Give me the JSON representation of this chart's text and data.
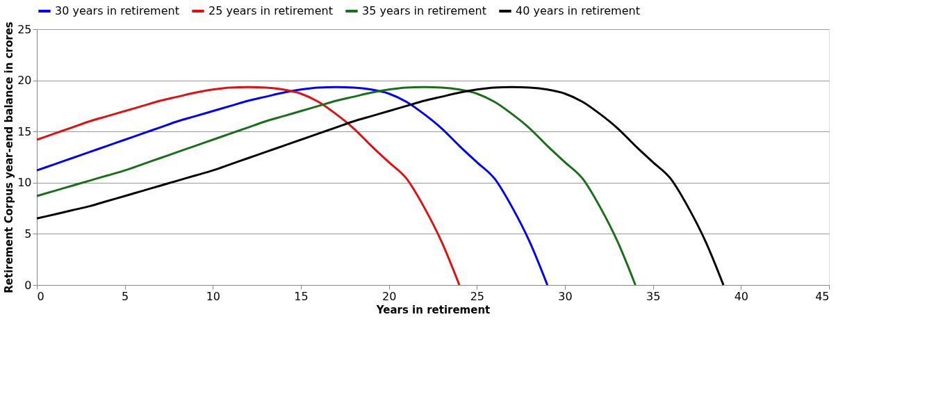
{
  "chart_data": {
    "type": "line",
    "xlabel": "Years in retirement",
    "ylabel": "Retirement Corpus year-end balance in crores",
    "xlim": [
      0,
      45
    ],
    "xticks": [
      0,
      5,
      10,
      15,
      20,
      25,
      30,
      35,
      40,
      45
    ],
    "ylim": [
      0,
      25
    ],
    "yticks": [
      0,
      5,
      10,
      15,
      20,
      25
    ],
    "grid": "y",
    "legend": "top",
    "marker": "none",
    "line_style": "solid",
    "series": [
      {
        "name": "30 years in retirement",
        "color": "#0000ff",
        "x": [
          0,
          1,
          2,
          3,
          4,
          5,
          6,
          7,
          8,
          9,
          10,
          11,
          12,
          13,
          14,
          15,
          16,
          17,
          18,
          19,
          20,
          21,
          22,
          23,
          24,
          25,
          26,
          27,
          28,
          29
        ],
        "values": [
          11.2,
          11.8,
          12.4,
          13.0,
          13.6,
          14.2,
          14.8,
          15.4,
          16.0,
          16.5,
          17.0,
          17.5,
          18.0,
          18.4,
          18.8,
          19.1,
          19.3,
          19.35,
          19.3,
          19.1,
          18.7,
          17.9,
          16.7,
          15.3,
          13.6,
          12.0,
          10.4,
          7.6,
          4.2,
          0
        ]
      },
      {
        "name": "25 years in retirement",
        "color": "#e01010",
        "x": [
          0,
          1,
          2,
          3,
          4,
          5,
          6,
          7,
          8,
          9,
          10,
          11,
          12,
          13,
          14,
          15,
          16,
          17,
          18,
          19,
          20,
          21,
          22,
          23,
          24
        ],
        "values": [
          14.2,
          14.8,
          15.4,
          16.0,
          16.5,
          17.0,
          17.5,
          18.0,
          18.4,
          18.8,
          19.1,
          19.3,
          19.35,
          19.3,
          19.1,
          18.7,
          17.9,
          16.7,
          15.3,
          13.6,
          12.0,
          10.4,
          7.6,
          4.2,
          0
        ]
      },
      {
        "name": "35 years in retirement",
        "color": "#1a6e1a",
        "x": [
          0,
          1,
          2,
          3,
          4,
          5,
          6,
          7,
          8,
          9,
          10,
          11,
          12,
          13,
          14,
          15,
          16,
          17,
          18,
          19,
          20,
          21,
          22,
          23,
          24,
          25,
          26,
          27,
          28,
          29,
          30,
          31,
          32,
          33,
          34
        ],
        "values": [
          8.7,
          9.2,
          9.7,
          10.2,
          10.7,
          11.2,
          11.8,
          12.4,
          13.0,
          13.6,
          14.2,
          14.8,
          15.4,
          16.0,
          16.5,
          17.0,
          17.5,
          18.0,
          18.4,
          18.8,
          19.1,
          19.3,
          19.35,
          19.3,
          19.1,
          18.7,
          17.9,
          16.7,
          15.3,
          13.6,
          12.0,
          10.4,
          7.6,
          4.2,
          0
        ]
      },
      {
        "name": "40 years in retirement",
        "color": "#000000",
        "x": [
          0,
          1,
          2,
          3,
          4,
          5,
          6,
          7,
          8,
          9,
          10,
          11,
          12,
          13,
          14,
          15,
          16,
          17,
          18,
          19,
          20,
          21,
          22,
          23,
          24,
          25,
          26,
          27,
          28,
          29,
          30,
          31,
          32,
          33,
          34,
          35,
          36,
          37,
          38,
          39
        ],
        "values": [
          6.5,
          6.9,
          7.3,
          7.7,
          8.2,
          8.7,
          9.2,
          9.7,
          10.2,
          10.7,
          11.2,
          11.8,
          12.4,
          13.0,
          13.6,
          14.2,
          14.8,
          15.4,
          16.0,
          16.5,
          17.0,
          17.5,
          18.0,
          18.4,
          18.8,
          19.1,
          19.3,
          19.35,
          19.3,
          19.1,
          18.7,
          17.9,
          16.7,
          15.3,
          13.6,
          12.0,
          10.4,
          7.6,
          4.2,
          0
        ]
      }
    ]
  }
}
